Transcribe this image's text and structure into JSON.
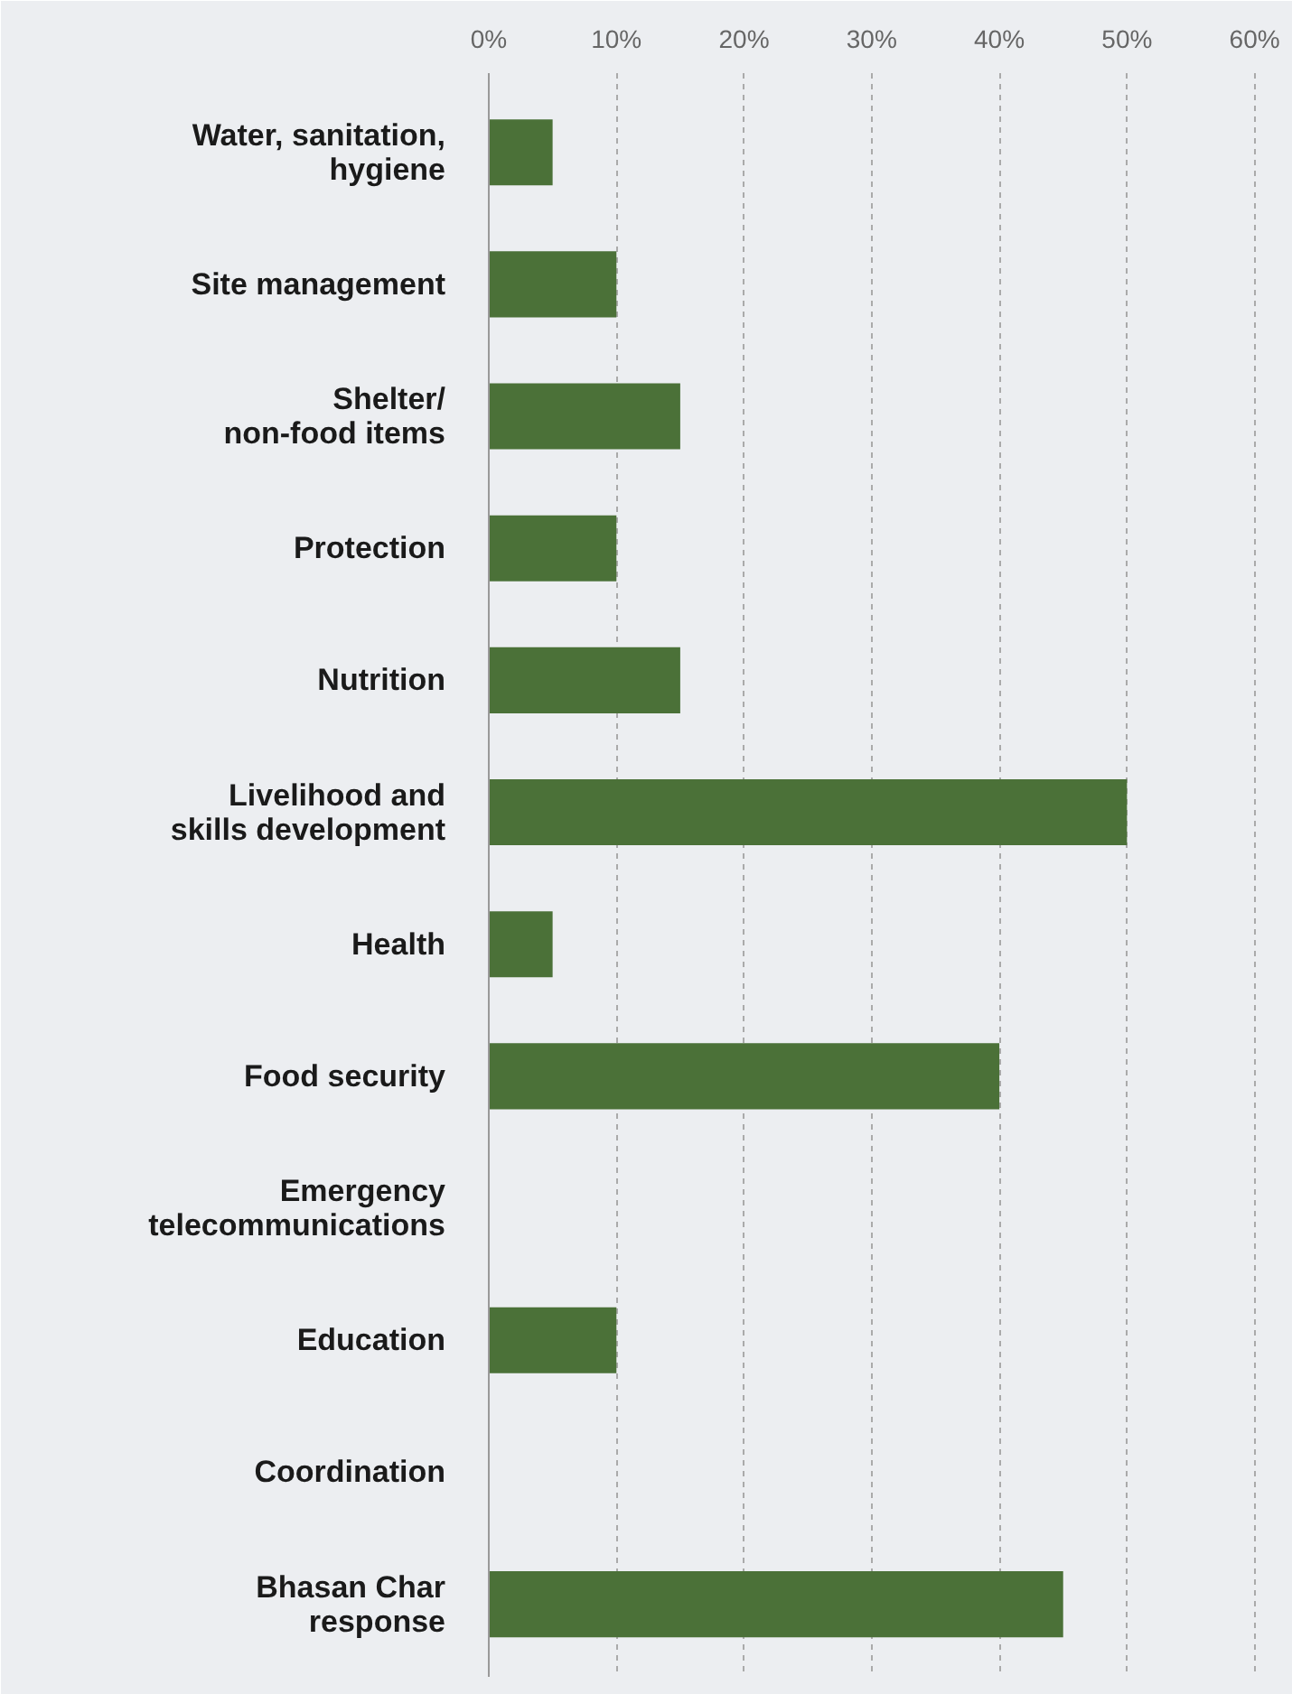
{
  "chart_data": {
    "type": "bar",
    "orientation": "horizontal",
    "categories": [
      "Water, sanitation,\nhygiene",
      "Site management",
      "Shelter/\nnon-food items",
      "Protection",
      "Nutrition",
      "Livelihood and\nskills development",
      "Health",
      "Food security",
      "Emergency\ntelecommunications",
      "Education",
      "Coordination",
      "Bhasan Char\nresponse"
    ],
    "values": [
      5,
      10,
      15,
      10,
      15,
      50,
      5,
      40,
      0,
      10,
      0,
      45
    ],
    "color": "#4b7138",
    "xlim": [
      0,
      63
    ],
    "xticks": [
      {
        "value": 0,
        "label": "0%"
      },
      {
        "value": 10,
        "label": "10%"
      },
      {
        "value": 20,
        "label": "20%"
      },
      {
        "value": 30,
        "label": "30%"
      },
      {
        "value": 40,
        "label": "40%"
      },
      {
        "value": 50,
        "label": "50%"
      },
      {
        "value": 60,
        "label": "60%"
      }
    ],
    "grid": "x"
  }
}
